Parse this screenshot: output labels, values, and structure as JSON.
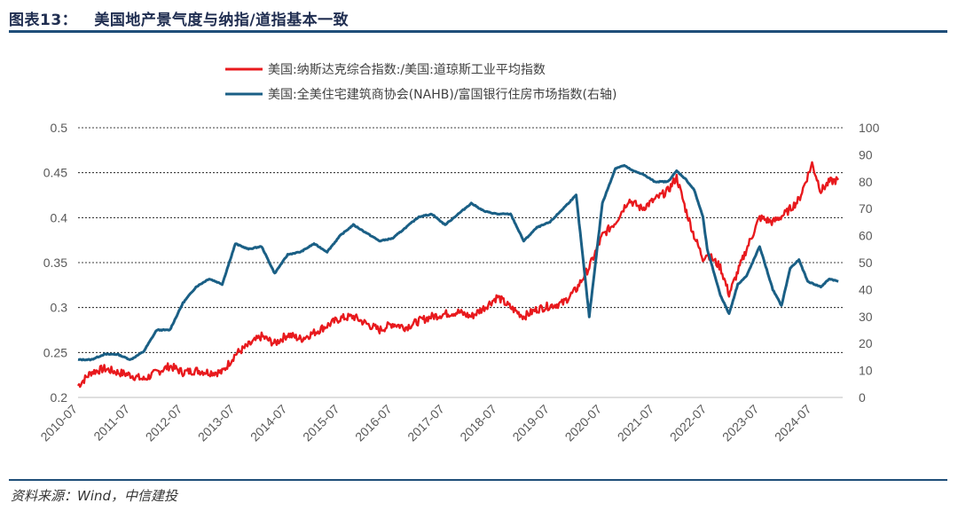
{
  "header": {
    "title": "图表13：   美国地产景气度与纳指/道指基本一致"
  },
  "footer": {
    "source": "资料来源：Wind，中信建投"
  },
  "colors": {
    "red": "#e8191d",
    "blue": "#1a5f85",
    "rule": "#1f4e79",
    "grid": "#000000"
  },
  "chart_data": {
    "type": "line",
    "legend_position": "top-center",
    "x_tick_labels": [
      "2010-07",
      "2011-07",
      "2012-07",
      "2013-07",
      "2014-07",
      "2015-07",
      "2016-07",
      "2017-07",
      "2018-07",
      "2019-07",
      "2020-07",
      "2021-07",
      "2022-07",
      "2023-07",
      "2024-07"
    ],
    "y_left": {
      "min": 0.2,
      "max": 0.5,
      "ticks": [
        "0.2",
        "0.25",
        "0.3",
        "0.35",
        "0.4",
        "0.45",
        "0.5"
      ]
    },
    "y_right": {
      "min": 0,
      "max": 100,
      "ticks": [
        "0",
        "10",
        "20",
        "30",
        "40",
        "50",
        "60",
        "70",
        "80",
        "90",
        "100"
      ]
    },
    "grid": "horizontal-dashed",
    "series": [
      {
        "name": "美国:纳斯达克综合指数:/美国:道琼斯工业平均指数",
        "axis": "left",
        "color": "#e8191d",
        "points": [
          [
            "2010-07",
            0.213
          ],
          [
            "2010-10",
            0.228
          ],
          [
            "2011-01",
            0.232
          ],
          [
            "2011-04",
            0.228
          ],
          [
            "2011-07",
            0.225
          ],
          [
            "2011-10",
            0.22
          ],
          [
            "2012-01",
            0.228
          ],
          [
            "2012-04",
            0.235
          ],
          [
            "2012-07",
            0.228
          ],
          [
            "2012-10",
            0.23
          ],
          [
            "2013-01",
            0.228
          ],
          [
            "2013-04",
            0.228
          ],
          [
            "2013-07",
            0.248
          ],
          [
            "2013-10",
            0.258
          ],
          [
            "2014-01",
            0.268
          ],
          [
            "2014-04",
            0.26
          ],
          [
            "2014-07",
            0.27
          ],
          [
            "2014-10",
            0.265
          ],
          [
            "2015-01",
            0.272
          ],
          [
            "2015-04",
            0.28
          ],
          [
            "2015-07",
            0.288
          ],
          [
            "2015-10",
            0.29
          ],
          [
            "2016-01",
            0.282
          ],
          [
            "2016-04",
            0.275
          ],
          [
            "2016-07",
            0.282
          ],
          [
            "2016-10",
            0.278
          ],
          [
            "2017-01",
            0.285
          ],
          [
            "2017-04",
            0.29
          ],
          [
            "2017-07",
            0.293
          ],
          [
            "2017-10",
            0.295
          ],
          [
            "2018-01",
            0.29
          ],
          [
            "2018-04",
            0.3
          ],
          [
            "2018-07",
            0.312
          ],
          [
            "2018-10",
            0.3
          ],
          [
            "2019-01",
            0.29
          ],
          [
            "2019-04",
            0.298
          ],
          [
            "2019-07",
            0.302
          ],
          [
            "2019-10",
            0.305
          ],
          [
            "2020-01",
            0.32
          ],
          [
            "2020-04",
            0.345
          ],
          [
            "2020-07",
            0.38
          ],
          [
            "2020-10",
            0.395
          ],
          [
            "2021-01",
            0.42
          ],
          [
            "2021-04",
            0.41
          ],
          [
            "2021-07",
            0.42
          ],
          [
            "2021-10",
            0.43
          ],
          [
            "2021-12",
            0.445
          ],
          [
            "2022-02",
            0.41
          ],
          [
            "2022-04",
            0.38
          ],
          [
            "2022-06",
            0.355
          ],
          [
            "2022-07",
            0.36
          ],
          [
            "2022-10",
            0.345
          ],
          [
            "2022-12",
            0.315
          ],
          [
            "2023-02",
            0.34
          ],
          [
            "2023-04",
            0.365
          ],
          [
            "2023-07",
            0.4
          ],
          [
            "2023-10",
            0.395
          ],
          [
            "2024-01",
            0.405
          ],
          [
            "2024-04",
            0.42
          ],
          [
            "2024-07",
            0.46
          ],
          [
            "2024-09",
            0.43
          ],
          [
            "2024-11",
            0.44
          ],
          [
            "2025-01",
            0.442
          ]
        ]
      },
      {
        "name": "美国:全美住宅建筑商协会(NAHB)/富国银行住房市场指数(右轴)",
        "axis": "right",
        "color": "#1a5f85",
        "points": [
          [
            "2010-07",
            14
          ],
          [
            "2010-10",
            14
          ],
          [
            "2011-01",
            16
          ],
          [
            "2011-04",
            16
          ],
          [
            "2011-07",
            14
          ],
          [
            "2011-10",
            17
          ],
          [
            "2012-01",
            25
          ],
          [
            "2012-04",
            25
          ],
          [
            "2012-07",
            35
          ],
          [
            "2012-10",
            41
          ],
          [
            "2013-01",
            44
          ],
          [
            "2013-04",
            42
          ],
          [
            "2013-07",
            57
          ],
          [
            "2013-10",
            55
          ],
          [
            "2014-01",
            56
          ],
          [
            "2014-04",
            46
          ],
          [
            "2014-07",
            53
          ],
          [
            "2014-10",
            54
          ],
          [
            "2015-01",
            57
          ],
          [
            "2015-04",
            54
          ],
          [
            "2015-07",
            60
          ],
          [
            "2015-10",
            64
          ],
          [
            "2016-01",
            61
          ],
          [
            "2016-04",
            58
          ],
          [
            "2016-07",
            59
          ],
          [
            "2016-10",
            63
          ],
          [
            "2017-01",
            67
          ],
          [
            "2017-04",
            68
          ],
          [
            "2017-07",
            64
          ],
          [
            "2017-10",
            68
          ],
          [
            "2018-01",
            72
          ],
          [
            "2018-04",
            69
          ],
          [
            "2018-07",
            68
          ],
          [
            "2018-10",
            68
          ],
          [
            "2019-01",
            58
          ],
          [
            "2019-04",
            63
          ],
          [
            "2019-07",
            65
          ],
          [
            "2019-10",
            70
          ],
          [
            "2020-01",
            75
          ],
          [
            "2020-04",
            30
          ],
          [
            "2020-07",
            72
          ],
          [
            "2020-10",
            85
          ],
          [
            "2020-12",
            86
          ],
          [
            "2021-02",
            84
          ],
          [
            "2021-04",
            83
          ],
          [
            "2021-07",
            80
          ],
          [
            "2021-10",
            80
          ],
          [
            "2021-12",
            84
          ],
          [
            "2022-02",
            81
          ],
          [
            "2022-04",
            77
          ],
          [
            "2022-06",
            67
          ],
          [
            "2022-07",
            55
          ],
          [
            "2022-10",
            38
          ],
          [
            "2022-12",
            31
          ],
          [
            "2023-02",
            42
          ],
          [
            "2023-04",
            45
          ],
          [
            "2023-07",
            56
          ],
          [
            "2023-10",
            40
          ],
          [
            "2023-12",
            34
          ],
          [
            "2024-02",
            48
          ],
          [
            "2024-04",
            51
          ],
          [
            "2024-06",
            43
          ],
          [
            "2024-09",
            41
          ],
          [
            "2024-11",
            44
          ],
          [
            "2025-01",
            43
          ]
        ]
      }
    ]
  }
}
